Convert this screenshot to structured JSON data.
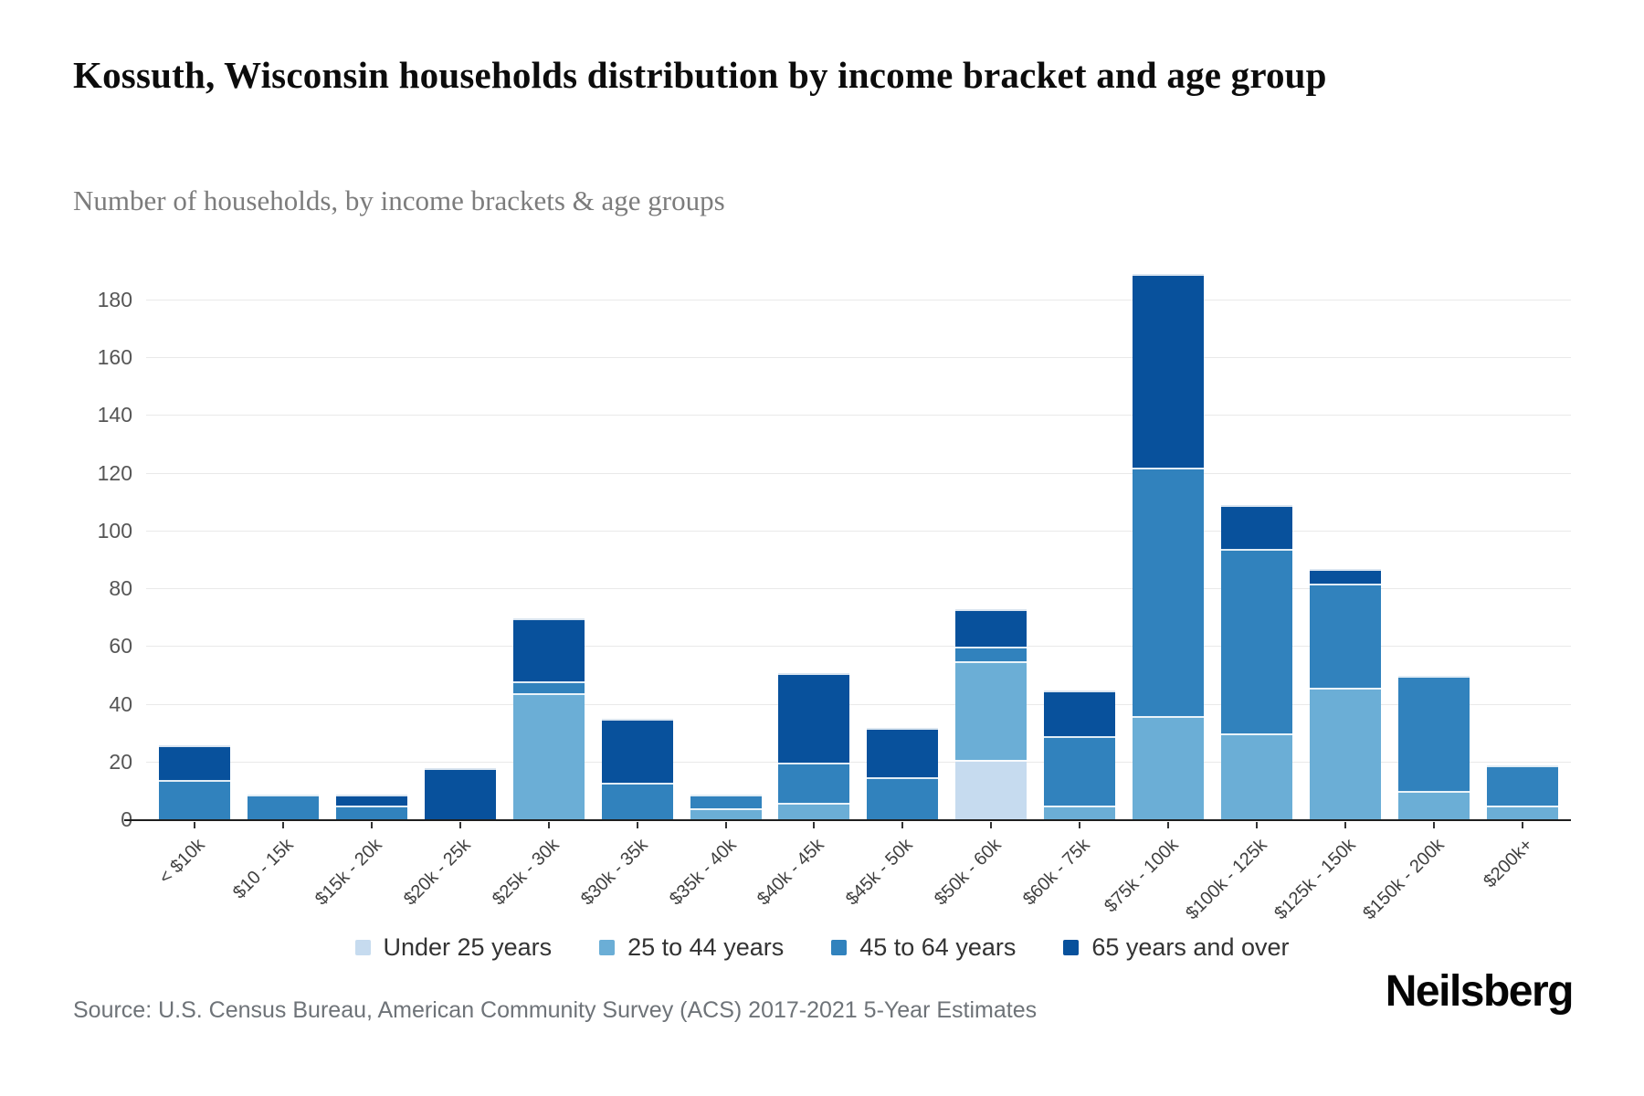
{
  "header": {
    "title": "Kossuth, Wisconsin households distribution by income bracket and age group",
    "subtitle": "Number of households, by income brackets & age groups"
  },
  "footer": {
    "source": "Source: U.S. Census Bureau, American Community Survey (ACS) 2017-2021 5-Year Estimates",
    "brand": "Neilsberg"
  },
  "colors": {
    "gridline": "#e9e9e9",
    "axis_line": "#1e1e1e",
    "y_label": "#565656",
    "x_label": "#3f3f3f",
    "legend_text": "#333333",
    "subtitle_text": "#7c7c7c",
    "source_text": "#6e7378"
  },
  "chart_data": {
    "type": "bar",
    "stacked": true,
    "title": "Kossuth, Wisconsin households distribution by income bracket and age group",
    "subtitle": "Number of households, by income brackets & age groups",
    "xlabel": "",
    "ylabel": "Number of households",
    "ylim": [
      0,
      180
    ],
    "ytick_step": 20,
    "grid": "horizontal",
    "legend_position": "bottom",
    "categories": [
      "< $10k",
      "$10 - 15k",
      "$15k - 20k",
      "$20k - 25k",
      "$25k - 30k",
      "$30k - 35k",
      "$35k - 40k",
      "$40k - 45k",
      "$45k - 50k",
      "$50k - 60k",
      "$60k - 75k",
      "$75k - 100k",
      "$100k - 125k",
      "$125k - 150k",
      "$150k - 200k",
      "$200k+"
    ],
    "series": [
      {
        "name": "Under 25 years",
        "color": "#c6dbef",
        "values": [
          0,
          0,
          0,
          0,
          0,
          0,
          0,
          0,
          0,
          21,
          0,
          0,
          0,
          0,
          0,
          0
        ]
      },
      {
        "name": "25 to 44 years",
        "color": "#6baed6",
        "values": [
          0,
          0,
          0,
          0,
          44,
          0,
          4,
          6,
          0,
          34,
          5,
          36,
          30,
          46,
          10,
          5
        ]
      },
      {
        "name": "45 to 64 years",
        "color": "#3182bd",
        "values": [
          14,
          9,
          5,
          0,
          4,
          13,
          5,
          14,
          15,
          5,
          24,
          86,
          64,
          36,
          40,
          14
        ]
      },
      {
        "name": "65 years and over",
        "color": "#08519c",
        "values": [
          12,
          0,
          4,
          18,
          22,
          22,
          0,
          31,
          17,
          13,
          16,
          67,
          15,
          5,
          0,
          0
        ]
      }
    ],
    "bar_totals": [
      26,
      9,
      9,
      18,
      70,
      35,
      9,
      51,
      32,
      73,
      45,
      189,
      109,
      87,
      50,
      19
    ]
  }
}
